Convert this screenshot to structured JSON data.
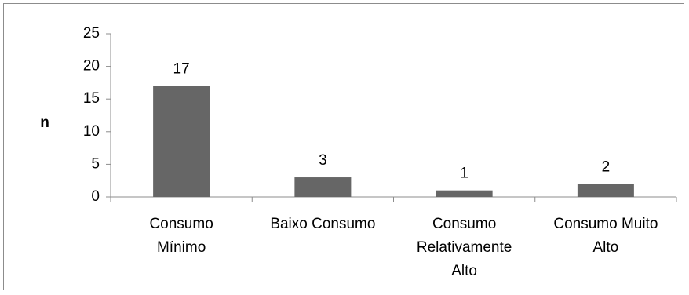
{
  "chart_data": {
    "type": "bar",
    "categories": [
      [
        "Consumo",
        "Mínimo"
      ],
      [
        "Baixo Consumo"
      ],
      [
        "Consumo",
        "Relativamente",
        "Alto"
      ],
      [
        "Consumo Muito",
        "Alto"
      ]
    ],
    "values": [
      17,
      3,
      1,
      2
    ],
    "data_labels": [
      "17",
      "3",
      "1",
      "2"
    ],
    "title": "",
    "xlabel": "",
    "ylabel": "n",
    "ylim": [
      0,
      25
    ],
    "yticks": [
      "0",
      "5",
      "10",
      "15",
      "20",
      "25"
    ],
    "grid": false,
    "legend": "none",
    "bar_color": "#666666",
    "axis_color": "#8c8c8c"
  }
}
